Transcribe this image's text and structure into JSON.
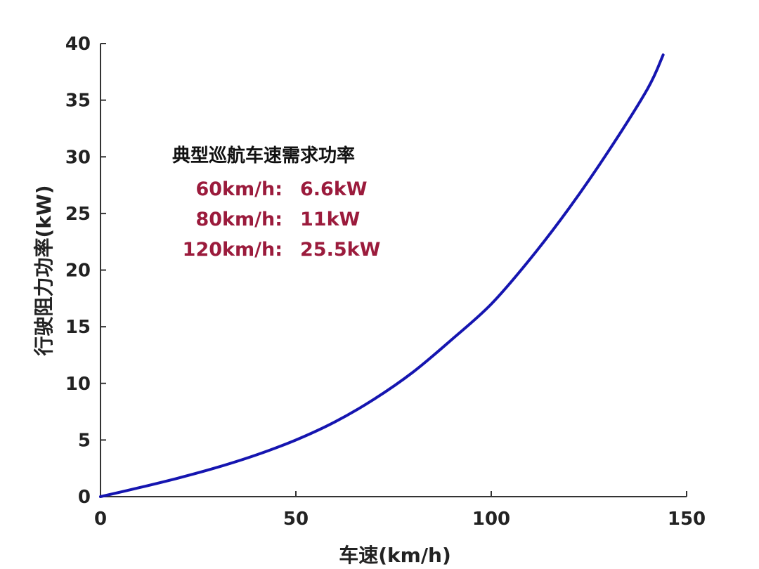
{
  "chart_data": {
    "type": "line",
    "xlabel": "车速(km/h)",
    "ylabel": "行驶阻力功率(kW)",
    "xlim": [
      0,
      150
    ],
    "ylim": [
      0,
      40
    ],
    "x_ticks": [
      0,
      50,
      100,
      150
    ],
    "y_ticks": [
      0,
      5,
      10,
      15,
      20,
      25,
      30,
      35,
      40
    ],
    "grid": false,
    "series": [
      {
        "color": "#1515b0",
        "x": [
          0,
          10,
          20,
          30,
          40,
          50,
          60,
          70,
          80,
          90,
          100,
          110,
          120,
          130,
          140,
          144
        ],
        "y": [
          0,
          0.8,
          1.65,
          2.6,
          3.7,
          5.0,
          6.6,
          8.6,
          11.0,
          13.9,
          17.0,
          21.0,
          25.5,
          30.5,
          36.0,
          39.0
        ]
      }
    ],
    "annotation": {
      "title": "典型巡航车速需求功率",
      "color": "#9b1b3c",
      "rows": [
        {
          "speed": "60km/h:",
          "power": "6.6kW"
        },
        {
          "speed": "80km/h:",
          "power": "11kW"
        },
        {
          "speed": "120km/h:",
          "power": "25.5kW"
        }
      ]
    }
  }
}
